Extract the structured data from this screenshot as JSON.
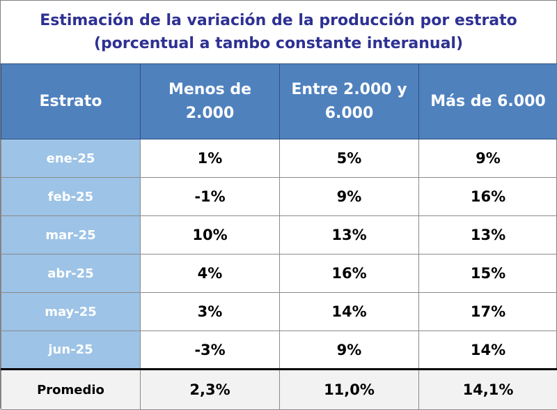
{
  "title": {
    "line1": "Estimación de la variación de la producción por estrato",
    "line2": "(porcentual a tambo constante interanual)"
  },
  "colors": {
    "title_text": "#2e3192",
    "header_bg": "#4f81bd",
    "row_label_bg": "#9dc3e6",
    "average_row_bg": "#f2f2f2"
  },
  "chart_data": {
    "type": "table",
    "columns": [
      "Estrato",
      "Menos de 2.000",
      "Entre 2.000 y 6.000",
      "Más de 6.000"
    ],
    "rows": [
      {
        "label": "ene-25",
        "values": [
          "1%",
          "5%",
          "9%"
        ]
      },
      {
        "label": "feb-25",
        "values": [
          "-1%",
          "9%",
          "16%"
        ]
      },
      {
        "label": "mar-25",
        "values": [
          "10%",
          "13%",
          "13%"
        ]
      },
      {
        "label": "abr-25",
        "values": [
          "4%",
          "16%",
          "15%"
        ]
      },
      {
        "label": "may-25",
        "values": [
          "3%",
          "14%",
          "17%"
        ]
      },
      {
        "label": "jun-25",
        "values": [
          "-3%",
          "9%",
          "14%"
        ]
      }
    ],
    "average": {
      "label": "Promedio",
      "values": [
        "2,3%",
        "11,0%",
        "14,1%"
      ]
    }
  }
}
